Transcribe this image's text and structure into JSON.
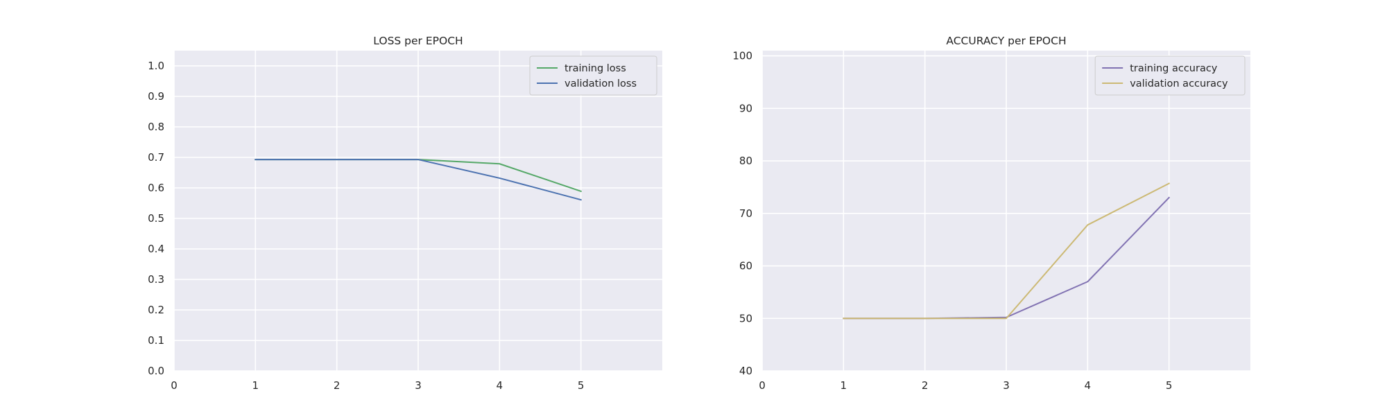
{
  "chart_data": [
    {
      "type": "line",
      "title": "LOSS per EPOCH",
      "xlabel": "",
      "ylabel": "",
      "xlim": [
        0,
        6
      ],
      "ylim": [
        0,
        1.05
      ],
      "xticks": [
        0,
        1,
        2,
        3,
        4,
        5
      ],
      "yticks": [
        0.0,
        0.1,
        0.2,
        0.3,
        0.4,
        0.5,
        0.6,
        0.7,
        0.8,
        0.9,
        1.0
      ],
      "ytick_decimals": 1,
      "grid": true,
      "legend_position": "top-right",
      "x": [
        1,
        2,
        3,
        4,
        5
      ],
      "series": [
        {
          "name": "training loss",
          "color": "#55a868",
          "values": [
            0.693,
            0.693,
            0.693,
            0.679,
            0.589
          ]
        },
        {
          "name": "validation loss",
          "color": "#4c72b0",
          "values": [
            0.693,
            0.693,
            0.693,
            0.632,
            0.561
          ]
        }
      ]
    },
    {
      "type": "line",
      "title": "ACCURACY per EPOCH",
      "xlabel": "",
      "ylabel": "",
      "xlim": [
        0,
        6
      ],
      "ylim": [
        40,
        101
      ],
      "xticks": [
        0,
        1,
        2,
        3,
        4,
        5
      ],
      "yticks": [
        40,
        50,
        60,
        70,
        80,
        90,
        100
      ],
      "ytick_decimals": 0,
      "grid": true,
      "legend_position": "top-right",
      "x": [
        1,
        2,
        3,
        4,
        5
      ],
      "series": [
        {
          "name": "training accuracy",
          "color": "#8172b2",
          "values": [
            50.0,
            50.0,
            50.2,
            57.0,
            73.0
          ]
        },
        {
          "name": "validation accuracy",
          "color": "#ccb974",
          "values": [
            50.0,
            50.0,
            50.0,
            67.8,
            75.7
          ]
        }
      ]
    }
  ],
  "colors": {
    "plot_background": "#eaeaf2",
    "grid": "#ffffff",
    "text": "#262626",
    "legend_background": "#eaeaf2",
    "legend_border": "#cccccc"
  }
}
